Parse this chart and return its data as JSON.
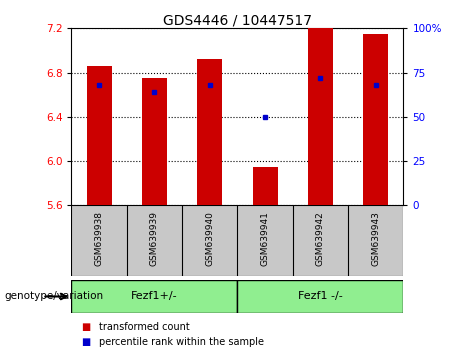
{
  "title": "GDS4446 / 10447517",
  "samples": [
    "GSM639938",
    "GSM639939",
    "GSM639940",
    "GSM639941",
    "GSM639942",
    "GSM639943"
  ],
  "red_values": [
    6.86,
    6.75,
    6.92,
    5.95,
    7.2,
    7.15
  ],
  "blue_percentiles": [
    68,
    64,
    68,
    50,
    72,
    68
  ],
  "ymin": 5.6,
  "ymax": 7.2,
  "yticks_left": [
    5.6,
    6.0,
    6.4,
    6.8,
    7.2
  ],
  "yticks_right": [
    0,
    25,
    50,
    75,
    100
  ],
  "group1_label": "Fezf1+/-",
  "group2_label": "Fezf1 -/-",
  "group_label": "genotype/variation",
  "group_color": "#90EE90",
  "bar_color": "#CC0000",
  "dot_color": "#0000CC",
  "legend_red": "transformed count",
  "legend_blue": "percentile rank within the sample",
  "background_color": "#FFFFFF",
  "label_bg_color": "#C8C8C8",
  "gridline_color": "#000000",
  "bar_width": 0.45
}
